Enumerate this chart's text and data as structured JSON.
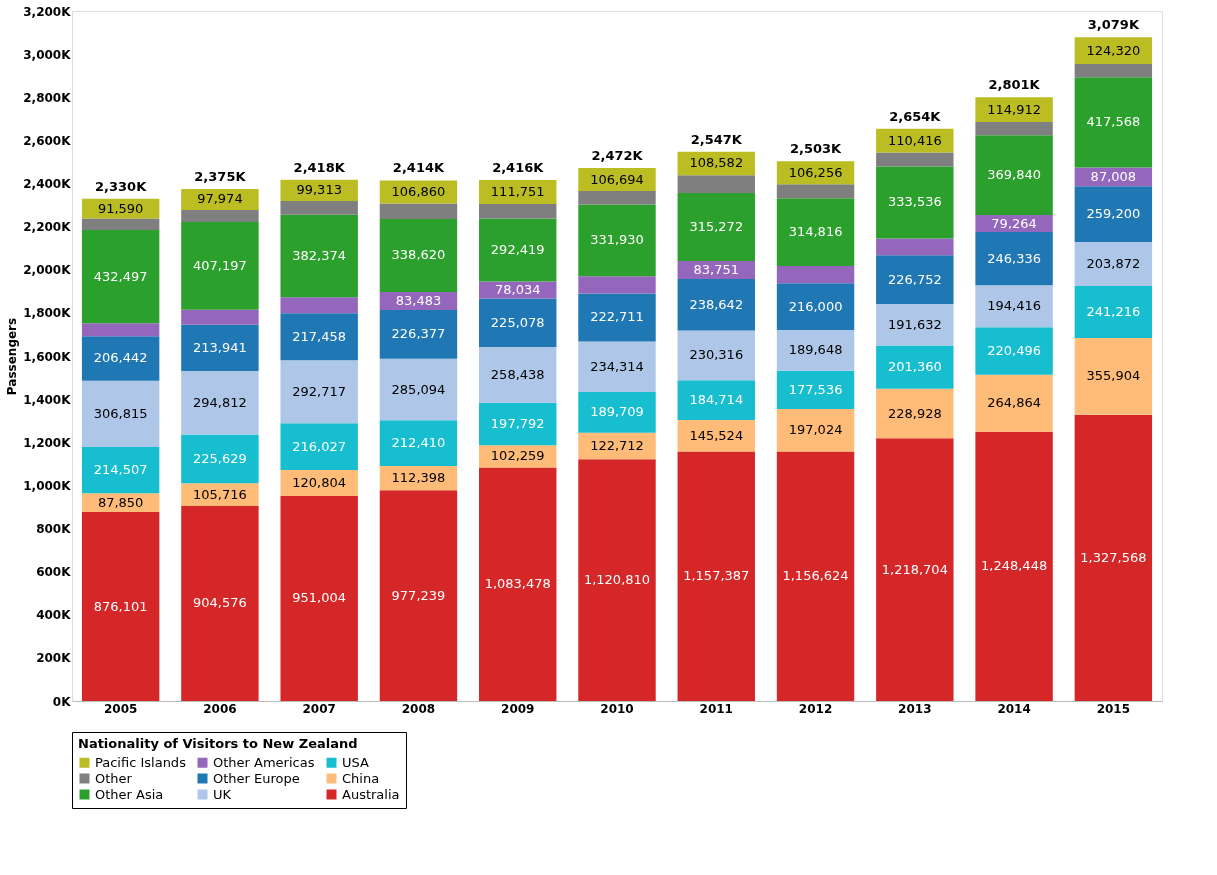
{
  "chart_data": {
    "type": "bar",
    "stacked": true,
    "ylabel": "Passengers",
    "legend_title": "Nationality of Visitors to New Zealand",
    "legend": "bottom",
    "grid": false,
    "categories": [
      "2005",
      "2006",
      "2007",
      "2008",
      "2009",
      "2010",
      "2011",
      "2012",
      "2013",
      "2014",
      "2015"
    ],
    "ylim": [
      0,
      3200000
    ],
    "yticks": [
      {
        "value": 0,
        "label": "0K"
      },
      {
        "value": 200000,
        "label": "200K"
      },
      {
        "value": 400000,
        "label": "400K"
      },
      {
        "value": 600000,
        "label": "600K"
      },
      {
        "value": 800000,
        "label": "800K"
      },
      {
        "value": 1000000,
        "label": "1,000K"
      },
      {
        "value": 1200000,
        "label": "1,200K"
      },
      {
        "value": 1400000,
        "label": "1,400K"
      },
      {
        "value": 1600000,
        "label": "1,600K"
      },
      {
        "value": 1800000,
        "label": "1,800K"
      },
      {
        "value": 2000000,
        "label": "2,000K"
      },
      {
        "value": 2200000,
        "label": "2,200K"
      },
      {
        "value": 2400000,
        "label": "2,400K"
      },
      {
        "value": 2600000,
        "label": "2,600K"
      },
      {
        "value": 2800000,
        "label": "2,800K"
      },
      {
        "value": 3000000,
        "label": "3,000K"
      },
      {
        "value": 3200000,
        "label": "3,200K"
      }
    ],
    "series": [
      {
        "name": "Australia",
        "color": "#d62728",
        "values": [
          876101,
          904576,
          951004,
          977239,
          1083478,
          1120810,
          1157387,
          1156624,
          1218704,
          1248448,
          1327568
        ],
        "value_labels": [
          "876,101",
          "904,576",
          "951,004",
          "977,239",
          "1,083,478",
          "1,120,810",
          "1,157,387",
          "1,156,624",
          "1,218,704",
          "1,248,448",
          "1,327,568"
        ]
      },
      {
        "name": "China",
        "color": "#ffbb78",
        "values": [
          87850,
          105716,
          120804,
          112398,
          102259,
          122712,
          145524,
          197024,
          228928,
          264864,
          355904
        ],
        "value_labels": [
          "87,850",
          "105,716",
          "120,804",
          "112,398",
          "102,259",
          "122,712",
          "145,524",
          "197,024",
          "228,928",
          "264,864",
          "355,904"
        ]
      },
      {
        "name": "USA",
        "color": "#17becf",
        "values": [
          214507,
          225629,
          216027,
          212410,
          197792,
          189709,
          184714,
          177536,
          201360,
          220496,
          241216
        ],
        "value_labels": [
          "214,507",
          "225,629",
          "216,027",
          "212,410",
          "197,792",
          "189,709",
          "184,714",
          "177,536",
          "201,360",
          "220,496",
          "241,216"
        ]
      },
      {
        "name": "UK",
        "color": "#aec7e8",
        "values": [
          306815,
          294812,
          292717,
          285094,
          258438,
          234314,
          230316,
          189648,
          191632,
          194416,
          203872
        ],
        "value_labels": [
          "306,815",
          "294,812",
          "292,717",
          "285,094",
          "258,438",
          "234,314",
          "230,316",
          "189,648",
          "191,632",
          "194,416",
          "203,872"
        ]
      },
      {
        "name": "Other Europe",
        "color": "#1f77b4",
        "values": [
          206442,
          213941,
          217458,
          226377,
          225078,
          222711,
          238642,
          216000,
          226752,
          246336,
          259200
        ],
        "value_labels": [
          "206,442",
          "213,941",
          "217,458",
          "226,377",
          "225,078",
          "222,711",
          "238,642",
          "216,000",
          "226,752",
          "246,336",
          "259,200"
        ]
      },
      {
        "name": "Other Americas",
        "color": "#9467bd",
        "values": [
          60000,
          70000,
          75000,
          83483,
          78034,
          80000,
          83751,
          80000,
          78000,
          79264,
          87008
        ],
        "value_labels": [
          null,
          null,
          null,
          "83,483",
          "78,034",
          null,
          "83,751",
          null,
          null,
          "79,264",
          "87,008"
        ]
      },
      {
        "name": "Other Asia",
        "color": "#2ca02c",
        "values": [
          432497,
          407197,
          382374,
          338620,
          292419,
          331930,
          315272,
          314816,
          333536,
          369840,
          417568
        ],
        "value_labels": [
          "432,497",
          "407,197",
          "382,374",
          "338,620",
          "292,419",
          "331,930",
          "315,272",
          "314,816",
          "333,536",
          "369,840",
          "417,568"
        ]
      },
      {
        "name": "Other",
        "color": "#7f7f7f",
        "values": [
          54000,
          55000,
          63000,
          72000,
          67000,
          63000,
          83000,
          65000,
          65000,
          62000,
          62000
        ],
        "value_labels": [
          null,
          null,
          null,
          null,
          null,
          null,
          null,
          null,
          null,
          null,
          null
        ]
      },
      {
        "name": "Pacific Islands",
        "color": "#bcbd22",
        "values": [
          91590,
          97974,
          99313,
          106860,
          111751,
          106694,
          108582,
          106256,
          110416,
          114912,
          124320
        ],
        "value_labels": [
          "91,590",
          "97,974",
          "99,313",
          "106,860",
          "111,751",
          "106,694",
          "108,582",
          "106,256",
          "110,416",
          "114,912",
          "124,320"
        ]
      }
    ],
    "totals": [
      "2,330K",
      "2,375K",
      "2,418K",
      "2,414K",
      "2,416K",
      "2,472K",
      "2,547K",
      "2,503K",
      "2,654K",
      "2,801K",
      "3,079K"
    ]
  }
}
